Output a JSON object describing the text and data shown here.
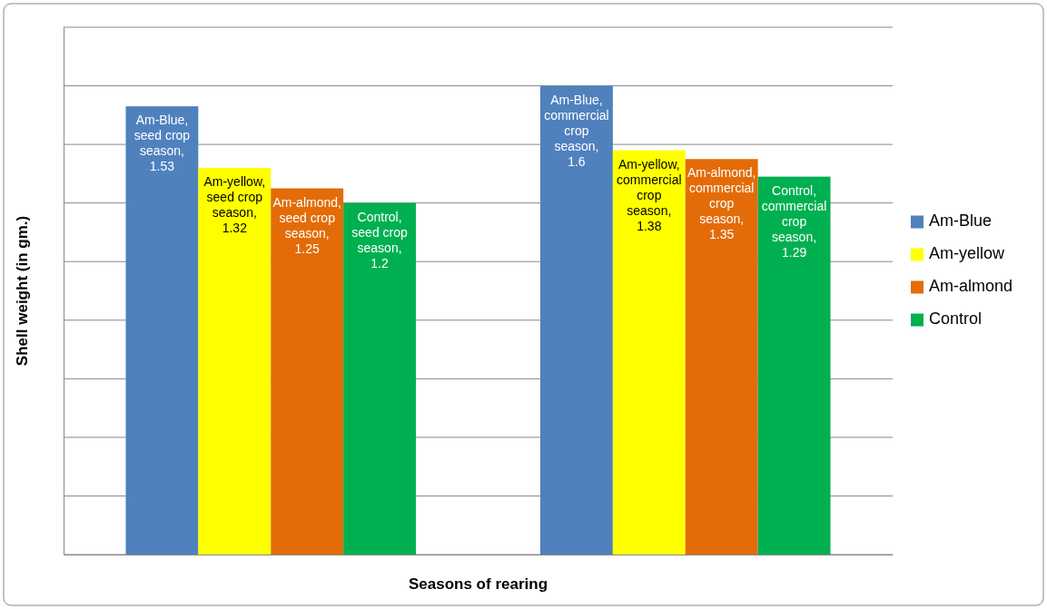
{
  "chart_data": {
    "type": "bar",
    "xlabel": "Seasons of rearing",
    "ylabel": "Shell weight (in gm.)",
    "categories": [
      null,
      null
    ],
    "series": [
      {
        "name": "Am-Blue",
        "color": "#4f81bd",
        "values": [
          1.53,
          1.6
        ],
        "value_labels": [
          "Am-Blue, seed crop season, 1.53",
          "Am-Blue, commercial crop season, 1.6"
        ]
      },
      {
        "name": "Am-yellow",
        "color": "#ffff00",
        "values": [
          1.32,
          1.38
        ],
        "value_labels": [
          "Am-yellow, seed crop season, 1.32",
          "Am-yellow, commercial crop season, 1.38"
        ]
      },
      {
        "name": "Am-almond",
        "color": "#e36c09",
        "values": [
          1.25,
          1.35
        ],
        "value_labels": [
          "Am-almond, seed crop season, 1.25",
          "Am-almond, commercial crop season, 1.35"
        ]
      },
      {
        "name": "Control",
        "color": "#00b050",
        "values": [
          1.2,
          1.29
        ],
        "value_labels": [
          "Control, seed crop season, 1.2",
          "Control, commercial crop season, 1.29"
        ]
      }
    ],
    "ylim": [
      0,
      1.8
    ],
    "yticks": [
      {
        "value": 0,
        "label": null
      },
      {
        "value": 0.2,
        "label": null
      },
      {
        "value": 0.4,
        "label": null
      },
      {
        "value": 0.6,
        "label": null
      },
      {
        "value": 0.8,
        "label": null
      },
      {
        "value": 1.0,
        "label": null
      },
      {
        "value": 1.2,
        "label": null
      },
      {
        "value": 1.4,
        "label": null
      },
      {
        "value": 1.6,
        "label": null
      },
      {
        "value": 1.8,
        "label": null
      }
    ],
    "grid": "y",
    "legend": "right"
  }
}
